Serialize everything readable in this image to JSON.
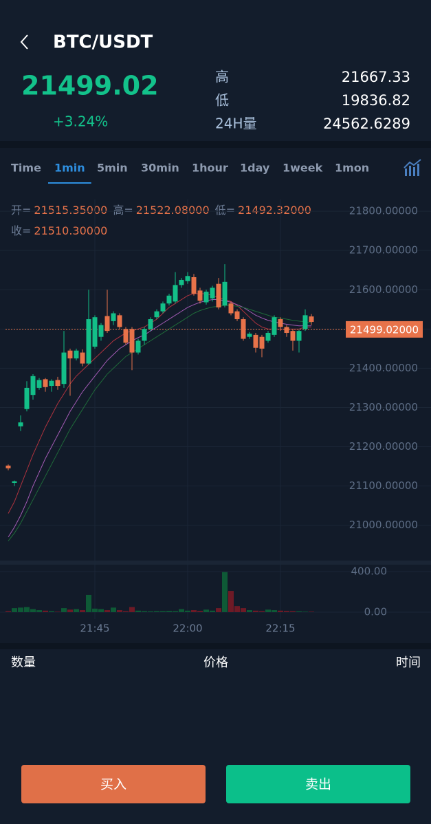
{
  "header": {
    "title": "BTC/USDT",
    "price": "21499.02",
    "change": "+3.24%",
    "stats": [
      {
        "label": "高",
        "value": "21667.33"
      },
      {
        "label": "低",
        "value": "19836.82"
      },
      {
        "label": "24H量",
        "value": "24562.6289"
      }
    ]
  },
  "tabs": {
    "items": [
      "Time",
      "1min",
      "5min",
      "30min",
      "1hour",
      "1day",
      "1week",
      "1mon"
    ],
    "active": 1
  },
  "ohlc_info": [
    {
      "label": "开=",
      "value": "21515.35000"
    },
    {
      "label": "高=",
      "value": "21522.08000"
    },
    {
      "label": "低=",
      "value": "21492.32000"
    },
    {
      "label": "收=",
      "value": "21510.30000"
    }
  ],
  "chart_data": {
    "type": "candlestick",
    "categories": [
      null,
      null,
      null,
      null,
      null,
      null,
      null,
      null,
      null,
      null,
      null,
      null,
      null,
      null,
      "21:45",
      null,
      null,
      null,
      null,
      null,
      null,
      null,
      null,
      null,
      null,
      null,
      null,
      null,
      null,
      "22:00",
      null,
      null,
      null,
      null,
      null,
      null,
      null,
      null,
      null,
      null,
      null,
      null,
      null,
      null,
      "22:15",
      null,
      null,
      null,
      null,
      null
    ],
    "open": [
      21152,
      21108,
      21252,
      21296,
      21332,
      21350,
      21372,
      21355,
      21370,
      21360,
      21445,
      21425,
      21440,
      21412,
      21455,
      21480,
      21533,
      21520,
      21535,
      21500,
      21500,
      21440,
      21470,
      21500,
      21530,
      21545,
      21565,
      21570,
      21612,
      21622,
      21632,
      21598,
      21568,
      21578,
      21615,
      21560,
      21565,
      21545,
      21525,
      21480,
      21485,
      21480,
      21470,
      21485,
      21525,
      21505,
      21495,
      21470,
      21500,
      21532
    ],
    "high": [
      21155,
      21114,
      21280,
      21367,
      21385,
      21375,
      21375,
      21372,
      21378,
      21495,
      21450,
      21450,
      21448,
      21600,
      21535,
      21515,
      21600,
      21545,
      21540,
      21505,
      21505,
      21475,
      21505,
      21530,
      21550,
      21570,
      21590,
      21645,
      21630,
      21645,
      21640,
      21605,
      21600,
      21610,
      21630,
      21665,
      21570,
      21550,
      21530,
      21492,
      21490,
      21485,
      21495,
      21535,
      21530,
      21510,
      21500,
      21498,
      21550,
      21538
    ],
    "low": [
      21140,
      21100,
      21240,
      21290,
      21320,
      21345,
      21340,
      21340,
      21345,
      21350,
      21330,
      21420,
      21405,
      21408,
      21450,
      21470,
      21490,
      21510,
      21500,
      21460,
      21395,
      21435,
      21460,
      21495,
      21525,
      21540,
      21560,
      21565,
      21605,
      21615,
      21585,
      21565,
      21562,
      21570,
      21550,
      21555,
      21535,
      21520,
      21470,
      21475,
      21440,
      21428,
      21465,
      21480,
      21495,
      21480,
      21445,
      21440,
      21495,
      21510
    ],
    "close": [
      21145,
      21112,
      21262,
      21350,
      21380,
      21370,
      21352,
      21368,
      21355,
      21440,
      21425,
      21445,
      21412,
      21525,
      21530,
      21510,
      21495,
      21540,
      21505,
      21465,
      21440,
      21470,
      21500,
      21525,
      21545,
      21565,
      21585,
      21612,
      21625,
      21635,
      21590,
      21572,
      21595,
      21605,
      21555,
      21620,
      21540,
      21525,
      21475,
      21488,
      21452,
      21450,
      21490,
      21530,
      21505,
      21490,
      21470,
      21495,
      21535,
      21518
    ],
    "up_color": "#13bf88",
    "down_color": "#e8734a",
    "series": [
      {
        "color": "#b0333f",
        "values": [
          21030,
          21060,
          21100,
          21140,
          21180,
          21215,
          21250,
          21280,
          21310,
          21335,
          21360,
          21380,
          21395,
          21410,
          21425,
          21440,
          21455,
          21470,
          21480,
          21490,
          21495,
          21500,
          21505,
          21515,
          21525,
          21540,
          21555,
          21565,
          21575,
          21585,
          21590,
          21590,
          21590,
          21585,
          21580,
          21575,
          21570,
          21560,
          21545,
          21530,
          21515,
          21505,
          21500,
          21500,
          21500,
          21500,
          21500,
          21500,
          21505,
          21505
        ]
      },
      {
        "color": "#a35bb5",
        "values": [
          20970,
          20995,
          21025,
          21060,
          21100,
          21135,
          21170,
          21200,
          21230,
          21260,
          21290,
          21315,
          21340,
          21360,
          21380,
          21400,
          21420,
          21435,
          21450,
          21460,
          21470,
          21478,
          21485,
          21495,
          21505,
          21515,
          21525,
          21535,
          21545,
          21555,
          21562,
          21568,
          21572,
          21575,
          21575,
          21572,
          21568,
          21562,
          21555,
          21545,
          21535,
          21528,
          21522,
          21518,
          21515,
          21512,
          21510,
          21508,
          21508,
          21508
        ]
      },
      {
        "color": "#1f6b3a",
        "values": [
          20960,
          20980,
          21005,
          21035,
          21065,
          21095,
          21125,
          21155,
          21185,
          21215,
          21245,
          21270,
          21295,
          21320,
          21345,
          21365,
          21385,
          21400,
          21415,
          21430,
          21440,
          21450,
          21460,
          21470,
          21480,
          21490,
          21500,
          21510,
          21520,
          21530,
          21540,
          21547,
          21552,
          21556,
          21558,
          21560,
          21560,
          21558,
          21555,
          21550,
          21545,
          21540,
          21535,
          21530,
          21528,
          21525,
          21522,
          21520,
          21518,
          21516
        ]
      }
    ],
    "ylim": [
      20910,
      21830
    ],
    "yticks": [
      {
        "value": 21000,
        "label": "21000.00000"
      },
      {
        "value": 21100,
        "label": "21100.00000"
      },
      {
        "value": 21200,
        "label": "21200.00000"
      },
      {
        "value": 21300,
        "label": "21300.00000"
      },
      {
        "value": 21400,
        "label": "21400.00000"
      },
      {
        "value": 21500,
        "label": "21500.00000"
      },
      {
        "value": 21600,
        "label": "21600.00000"
      },
      {
        "value": 21700,
        "label": "21700.00000"
      },
      {
        "value": 21800,
        "label": "21800.00000"
      }
    ],
    "last_price": {
      "value": 21499.02,
      "label": "21499.02000"
    },
    "grid": true,
    "volume": {
      "values": [
        10,
        40,
        45,
        50,
        30,
        20,
        15,
        10,
        5,
        40,
        25,
        30,
        20,
        170,
        35,
        30,
        20,
        45,
        20,
        10,
        50,
        15,
        10,
        8,
        10,
        10,
        12,
        10,
        30,
        15,
        20,
        12,
        25,
        15,
        40,
        395,
        210,
        60,
        40,
        20,
        15,
        10,
        25,
        20,
        15,
        12,
        10,
        8,
        5,
        5
      ],
      "up_color": "#0e5a36",
      "down_color": "#6e1a26",
      "ylim": [
        0,
        475
      ],
      "yticks": [
        {
          "value": 0,
          "label": "0.00"
        },
        {
          "value": 400,
          "label": "400.00"
        }
      ]
    }
  },
  "trades_table": {
    "columns": [
      "数量",
      "价格",
      "时间"
    ]
  },
  "buttons": {
    "buy": "买入",
    "sell": "卖出"
  }
}
